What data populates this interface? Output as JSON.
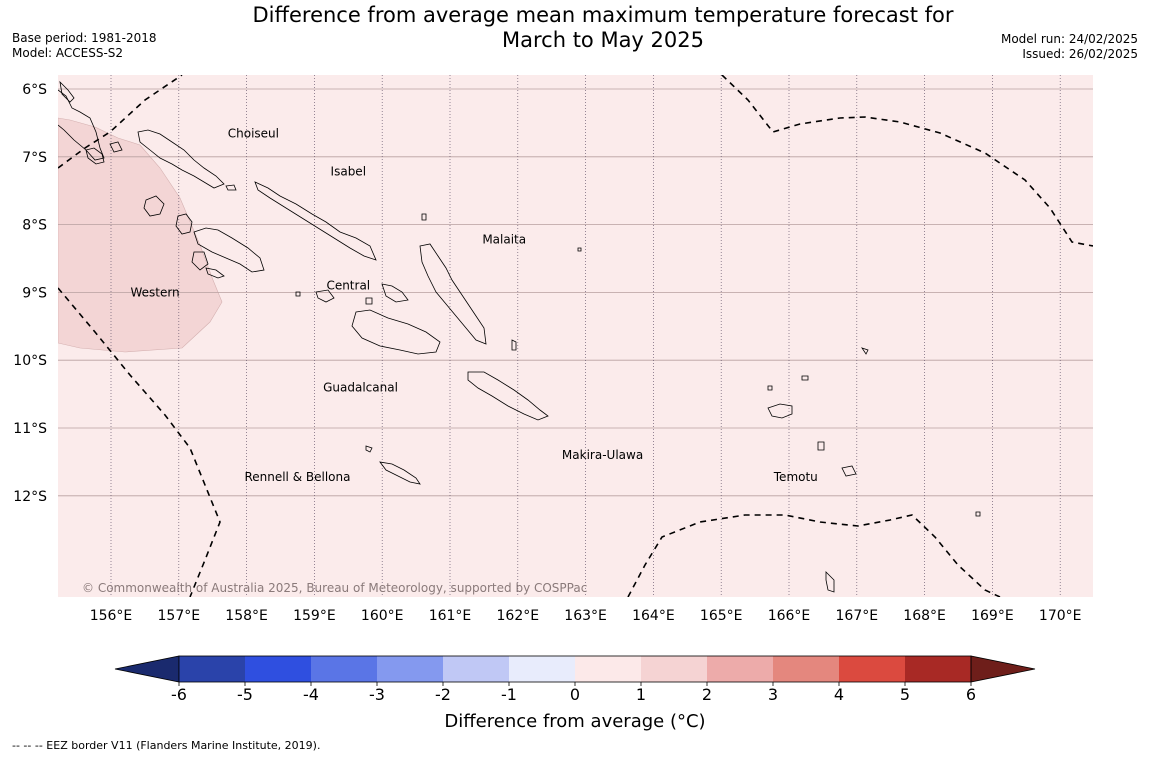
{
  "title_line1": "Difference from average mean maximum temperature forecast for",
  "title_line2": "March to May 2025",
  "base_period": "Base period: 1981-2018",
  "model": "Model: ACCESS-S2",
  "model_run": "Model run: 24/02/2025",
  "issued": "Issued: 26/02/2025",
  "copyright": "© Commonwealth of Australia 2025, Bureau of Meteorology, supported by COSPPac",
  "lat_labels": [
    "6°S",
    "7°S",
    "8°S",
    "9°S",
    "10°S",
    "11°S",
    "12°S"
  ],
  "lon_labels": [
    "156°E",
    "157°E",
    "158°E",
    "159°E",
    "160°E",
    "161°E",
    "162°E",
    "163°E",
    "164°E",
    "165°E",
    "166°E",
    "167°E",
    "168°E",
    "169°E",
    "170°E"
  ],
  "provinces": [
    {
      "name": "Choiseul",
      "lon": 158.1,
      "lat": -6.66
    },
    {
      "name": "Isabel",
      "lon": 159.5,
      "lat": -7.22
    },
    {
      "name": "Malaita",
      "lon": 161.8,
      "lat": -8.22
    },
    {
      "name": "Western",
      "lon": 156.65,
      "lat": -9.0
    },
    {
      "name": "Central",
      "lon": 159.5,
      "lat": -8.9
    },
    {
      "name": "Guadalcanal",
      "lon": 159.68,
      "lat": -10.4
    },
    {
      "name": "Makira-Ulawa",
      "lon": 163.25,
      "lat": -11.4
    },
    {
      "name": "Rennell & Bellona",
      "lon": 158.75,
      "lat": -11.72
    },
    {
      "name": "Temotu",
      "lon": 166.1,
      "lat": -11.72
    }
  ],
  "colorbar": {
    "ticks": [
      "-6",
      "-5",
      "-4",
      "-3",
      "-2",
      "-1",
      "0",
      "1",
      "2",
      "3",
      "4",
      "5",
      "6"
    ],
    "colors": [
      "#2a43aa",
      "#2f4fe0",
      "#5a75e6",
      "#8499ef",
      "#c0c8f5",
      "#e8ecfc",
      "#fce9e9",
      "#f5d3d3",
      "#edabaa",
      "#e4877e",
      "#db4a3f",
      "#a82925"
    ],
    "extend_low_color": "#1a2a6e",
    "extend_high_color": "#6e1e1a",
    "label": "Difference from average (°C)"
  },
  "background_color": "#fbebeb",
  "anomaly_0_1_color": "#fbebeb",
  "anomaly_1_2_color": "#f3d5d5",
  "legend_eez": "--  --  -- EEZ border V11 (Flanders Marine Institute, 2019)."
}
